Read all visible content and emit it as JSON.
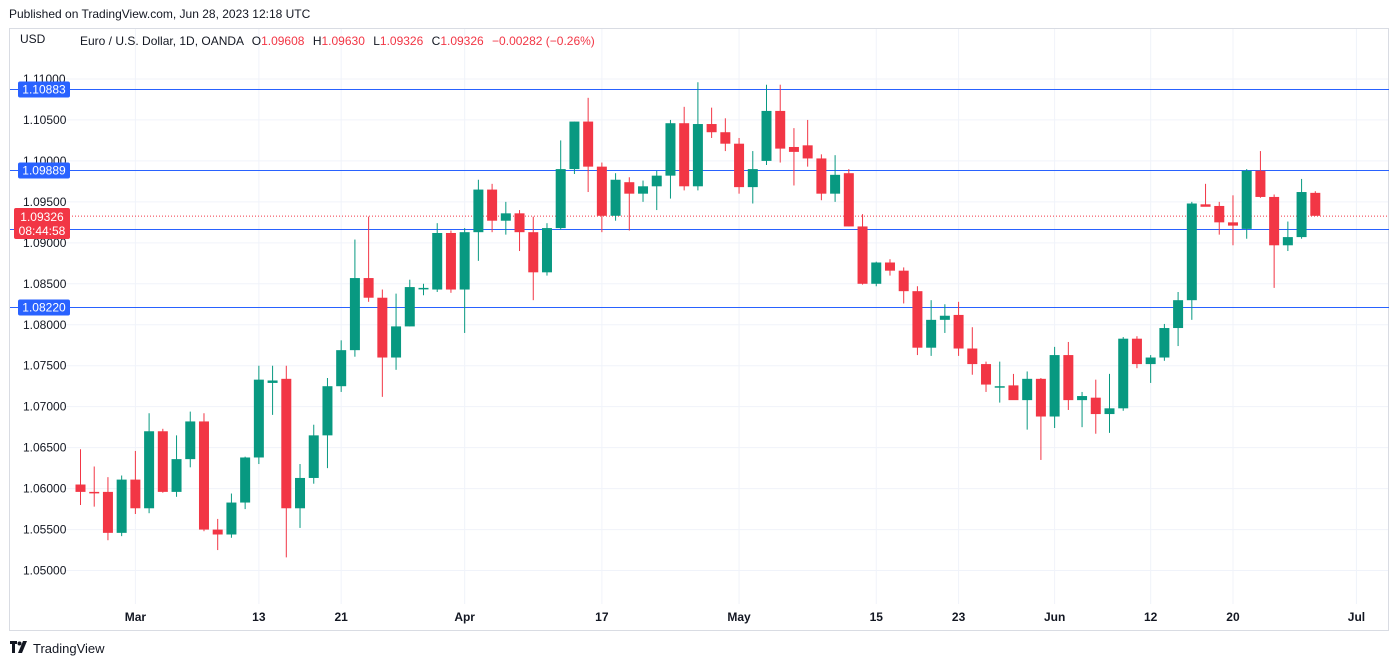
{
  "published": "Published on TradingView.com, Jun 28, 2023 12:18 UTC",
  "brand": "TradingView",
  "currency_label": "USD",
  "legend": {
    "name": "Euro / U.S. Dollar, 1D, OANDA",
    "o_label": "O",
    "o": "1.09608",
    "h_label": "H",
    "h": "1.09630",
    "l_label": "L",
    "l": "1.09326",
    "c_label": "C",
    "c": "1.09326",
    "chg": "−0.00282 (−0.26%)"
  },
  "price_tag": {
    "value": "1.09326",
    "countdown": "08:44:58"
  },
  "colors": {
    "up": "#089981",
    "down": "#f23645",
    "level": "#2962ff",
    "grid": "#f0f3fa",
    "text": "#131722"
  },
  "chart_data": {
    "type": "candlestick",
    "ylim": [
      1.044,
      1.114
    ],
    "yticks": [
      "1.11000",
      "1.10500",
      "1.10000",
      "1.09500",
      "1.09000",
      "1.08500",
      "1.08000",
      "1.07500",
      "1.07000",
      "1.06500",
      "1.06000",
      "1.05500",
      "1.05000"
    ],
    "xticks": [
      {
        "index": 4,
        "label": "Mar"
      },
      {
        "index": 13,
        "label": "13"
      },
      {
        "index": 19,
        "label": "21"
      },
      {
        "index": 28,
        "label": "Apr"
      },
      {
        "index": 38,
        "label": "17"
      },
      {
        "index": 48,
        "label": "May"
      },
      {
        "index": 58,
        "label": "15"
      },
      {
        "index": 64,
        "label": "23"
      },
      {
        "index": 71,
        "label": "Jun"
      },
      {
        "index": 78,
        "label": "12"
      },
      {
        "index": 84,
        "label": "20"
      },
      {
        "index": 93,
        "label": "Jul"
      }
    ],
    "levels": [
      "1.10883",
      "1.09889",
      "1.09167",
      "1.08220"
    ],
    "last_price": 1.09326,
    "candles": [
      {
        "o": 1.0605,
        "h": 1.0648,
        "l": 1.058,
        "c": 1.0596
      },
      {
        "o": 1.0596,
        "h": 1.0627,
        "l": 1.0578,
        "c": 1.0595
      },
      {
        "o": 1.0596,
        "h": 1.0614,
        "l": 1.0537,
        "c": 1.0546
      },
      {
        "o": 1.0546,
        "h": 1.0616,
        "l": 1.0542,
        "c": 1.0611
      },
      {
        "o": 1.0611,
        "h": 1.0646,
        "l": 1.0569,
        "c": 1.0576
      },
      {
        "o": 1.0576,
        "h": 1.0692,
        "l": 1.057,
        "c": 1.067
      },
      {
        "o": 1.067,
        "h": 1.0673,
        "l": 1.0595,
        "c": 1.0596
      },
      {
        "o": 1.0596,
        "h": 1.0665,
        "l": 1.059,
        "c": 1.0636
      },
      {
        "o": 1.0636,
        "h": 1.0694,
        "l": 1.0626,
        "c": 1.0682
      },
      {
        "o": 1.0682,
        "h": 1.0692,
        "l": 1.0548,
        "c": 1.055
      },
      {
        "o": 1.055,
        "h": 1.0563,
        "l": 1.0525,
        "c": 1.0544
      },
      {
        "o": 1.0544,
        "h": 1.0594,
        "l": 1.054,
        "c": 1.0583
      },
      {
        "o": 1.0583,
        "h": 1.0639,
        "l": 1.0575,
        "c": 1.0638
      },
      {
        "o": 1.0638,
        "h": 1.075,
        "l": 1.063,
        "c": 1.0733
      },
      {
        "o": 1.0729,
        "h": 1.075,
        "l": 1.069,
        "c": 1.0732
      },
      {
        "o": 1.0734,
        "h": 1.075,
        "l": 1.0516,
        "c": 1.0576
      },
      {
        "o": 1.0576,
        "h": 1.063,
        "l": 1.0552,
        "c": 1.0613
      },
      {
        "o": 1.0613,
        "h": 1.0678,
        "l": 1.0606,
        "c": 1.0665
      },
      {
        "o": 1.0665,
        "h": 1.0735,
        "l": 1.0625,
        "c": 1.0725
      },
      {
        "o": 1.0725,
        "h": 1.0781,
        "l": 1.0718,
        "c": 1.0769
      },
      {
        "o": 1.0769,
        "h": 1.0904,
        "l": 1.0761,
        "c": 1.0857
      },
      {
        "o": 1.0857,
        "h": 1.0932,
        "l": 1.0828,
        "c": 1.0833
      },
      {
        "o": 1.0833,
        "h": 1.0843,
        "l": 1.0712,
        "c": 1.076
      },
      {
        "o": 1.076,
        "h": 1.0838,
        "l": 1.0745,
        "c": 1.0798
      },
      {
        "o": 1.0798,
        "h": 1.0855,
        "l": 1.0798,
        "c": 1.0846
      },
      {
        "o": 1.0845,
        "h": 1.085,
        "l": 1.0836,
        "c": 1.0845
      },
      {
        "o": 1.0843,
        "h": 1.0924,
        "l": 1.084,
        "c": 1.0912
      },
      {
        "o": 1.0912,
        "h": 1.0915,
        "l": 1.0839,
        "c": 1.0843
      },
      {
        "o": 1.0843,
        "h": 1.0918,
        "l": 1.079,
        "c": 1.0913
      },
      {
        "o": 1.0913,
        "h": 1.0977,
        "l": 1.0878,
        "c": 1.0965
      },
      {
        "o": 1.0965,
        "h": 1.0972,
        "l": 1.0913,
        "c": 1.0927
      },
      {
        "o": 1.0927,
        "h": 1.095,
        "l": 1.091,
        "c": 1.0936
      },
      {
        "o": 1.0936,
        "h": 1.094,
        "l": 1.089,
        "c": 1.0913
      },
      {
        "o": 1.0913,
        "h": 1.0932,
        "l": 1.083,
        "c": 1.0864
      },
      {
        "o": 1.0864,
        "h": 1.0924,
        "l": 1.086,
        "c": 1.0918
      },
      {
        "o": 1.0918,
        "h": 1.1025,
        "l": 1.0916,
        "c": 1.099
      },
      {
        "o": 1.099,
        "h": 1.1048,
        "l": 1.0984,
        "c": 1.1048
      },
      {
        "o": 1.1048,
        "h": 1.1077,
        "l": 1.0962,
        "c": 1.0993
      },
      {
        "o": 1.0993,
        "h": 1.0998,
        "l": 1.0913,
        "c": 1.0933
      },
      {
        "o": 1.0933,
        "h": 1.0985,
        "l": 1.0927,
        "c": 1.0977
      },
      {
        "o": 1.0974,
        "h": 1.098,
        "l": 1.0915,
        "c": 1.096
      },
      {
        "o": 1.096,
        "h": 1.0976,
        "l": 1.095,
        "c": 1.0969
      },
      {
        "o": 1.0969,
        "h": 1.0988,
        "l": 1.094,
        "c": 1.0982
      },
      {
        "o": 1.0982,
        "h": 1.105,
        "l": 1.0954,
        "c": 1.1046
      },
      {
        "o": 1.1046,
        "h": 1.1066,
        "l": 1.0964,
        "c": 1.0969
      },
      {
        "o": 1.0969,
        "h": 1.1096,
        "l": 1.0964,
        "c": 1.1045
      },
      {
        "o": 1.1045,
        "h": 1.1065,
        "l": 1.1028,
        "c": 1.1035
      },
      {
        "o": 1.1035,
        "h": 1.1052,
        "l": 1.1012,
        "c": 1.1021
      },
      {
        "o": 1.1021,
        "h": 1.1028,
        "l": 1.096,
        "c": 1.0968
      },
      {
        "o": 1.0968,
        "h": 1.1012,
        "l": 1.0948,
        "c": 1.099
      },
      {
        "o": 1.1,
        "h": 1.1093,
        "l": 1.0995,
        "c": 1.1061
      },
      {
        "o": 1.1061,
        "h": 1.1093,
        "l": 1.0998,
        "c": 1.1015
      },
      {
        "o": 1.1017,
        "h": 1.104,
        "l": 1.097,
        "c": 1.1011
      },
      {
        "o": 1.1019,
        "h": 1.105,
        "l": 1.0993,
        "c": 1.1003
      },
      {
        "o": 1.1003,
        "h": 1.1008,
        "l": 1.0952,
        "c": 1.096
      },
      {
        "o": 1.096,
        "h": 1.1007,
        "l": 1.095,
        "c": 1.0983
      },
      {
        "o": 1.0985,
        "h": 1.099,
        "l": 1.092,
        "c": 1.092
      },
      {
        "o": 1.092,
        "h": 1.0935,
        "l": 1.0849,
        "c": 1.085
      },
      {
        "o": 1.085,
        "h": 1.0877,
        "l": 1.0847,
        "c": 1.0876
      },
      {
        "o": 1.0876,
        "h": 1.088,
        "l": 1.086,
        "c": 1.0866
      },
      {
        "o": 1.0866,
        "h": 1.087,
        "l": 1.0826,
        "c": 1.0841
      },
      {
        "o": 1.0841,
        "h": 1.0847,
        "l": 1.0763,
        "c": 1.0772
      },
      {
        "o": 1.0772,
        "h": 1.083,
        "l": 1.0762,
        "c": 1.0806
      },
      {
        "o": 1.0806,
        "h": 1.0825,
        "l": 1.079,
        "c": 1.0811
      },
      {
        "o": 1.0812,
        "h": 1.0828,
        "l": 1.0762,
        "c": 1.0771
      },
      {
        "o": 1.0771,
        "h": 1.0797,
        "l": 1.0739,
        "c": 1.0752
      },
      {
        "o": 1.0752,
        "h": 1.0755,
        "l": 1.0718,
        "c": 1.0727
      },
      {
        "o": 1.0725,
        "h": 1.0755,
        "l": 1.0705,
        "c": 1.0725
      },
      {
        "o": 1.0726,
        "h": 1.074,
        "l": 1.071,
        "c": 1.0708
      },
      {
        "o": 1.0708,
        "h": 1.0743,
        "l": 1.0672,
        "c": 1.0734
      },
      {
        "o": 1.0734,
        "h": 1.0735,
        "l": 1.0635,
        "c": 1.0688
      },
      {
        "o": 1.0688,
        "h": 1.0773,
        "l": 1.0674,
        "c": 1.0763
      },
      {
        "o": 1.0763,
        "h": 1.0779,
        "l": 1.0696,
        "c": 1.0708
      },
      {
        "o": 1.0708,
        "h": 1.0718,
        "l": 1.0675,
        "c": 1.0713
      },
      {
        "o": 1.0711,
        "h": 1.0733,
        "l": 1.0667,
        "c": 1.0691
      },
      {
        "o": 1.0691,
        "h": 1.074,
        "l": 1.0668,
        "c": 1.0698
      },
      {
        "o": 1.0698,
        "h": 1.0785,
        "l": 1.0695,
        "c": 1.0783
      },
      {
        "o": 1.0783,
        "h": 1.0786,
        "l": 1.0747,
        "c": 1.0752
      },
      {
        "o": 1.0752,
        "h": 1.0763,
        "l": 1.0729,
        "c": 1.076
      },
      {
        "o": 1.076,
        "h": 1.0801,
        "l": 1.0756,
        "c": 1.0796
      },
      {
        "o": 1.0796,
        "h": 1.084,
        "l": 1.0774,
        "c": 1.083
      },
      {
        "o": 1.083,
        "h": 1.095,
        "l": 1.0806,
        "c": 1.0948
      },
      {
        "o": 1.0947,
        "h": 1.0972,
        "l": 1.0945,
        "c": 1.0944
      },
      {
        "o": 1.0945,
        "h": 1.095,
        "l": 1.091,
        "c": 1.0925
      },
      {
        "o": 1.0925,
        "h": 1.0958,
        "l": 1.0897,
        "c": 1.0921
      },
      {
        "o": 1.0917,
        "h": 1.099,
        "l": 1.0905,
        "c": 1.0988
      },
      {
        "o": 1.0988,
        "h": 1.1012,
        "l": 1.0955,
        "c": 1.0956
      },
      {
        "o": 1.0956,
        "h": 1.0959,
        "l": 1.0845,
        "c": 1.0897
      },
      {
        "o": 1.0897,
        "h": 1.0926,
        "l": 1.089,
        "c": 1.0907
      },
      {
        "o": 1.0907,
        "h": 1.0978,
        "l": 1.0905,
        "c": 1.0962
      },
      {
        "o": 1.0961,
        "h": 1.0963,
        "l": 1.0933,
        "c": 1.0933
      }
    ]
  }
}
